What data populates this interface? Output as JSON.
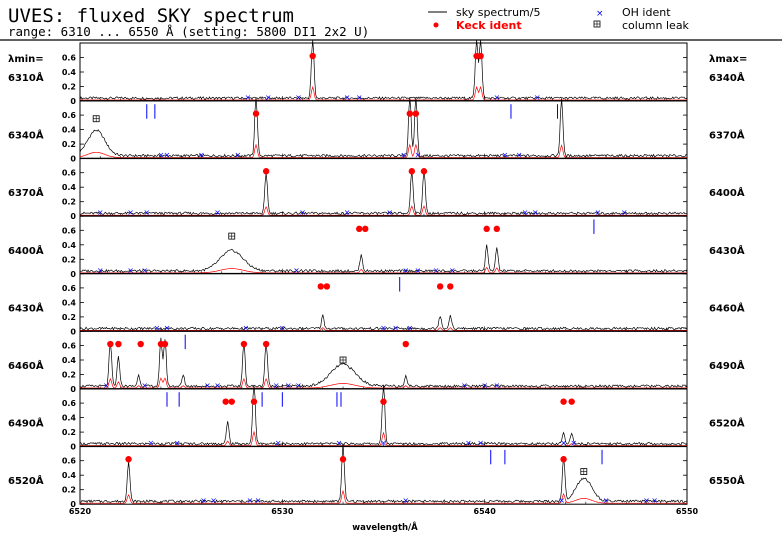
{
  "header": {
    "title": "UVES: fluxed SKY spectrum",
    "range_line": "range: 6310 ... 6550 Å (setting: 5800 DI1 2x2 U)"
  },
  "legend": {
    "sky": "sky spectrum/5",
    "keck": "Keck ident",
    "oh": "OH ident",
    "leak": "column leak"
  },
  "side_headers": {
    "left": "λmin=",
    "right": "λmax="
  },
  "colors": {
    "sky": "#000000",
    "keck": "#ff0000",
    "oh": "#0000ff",
    "frame": "#000000"
  },
  "chart_data": {
    "type": "line",
    "title": "UVES: fluxed SKY spectrum",
    "xlabel": "wavelength/Å",
    "ylabel": "",
    "x_ticks": [
      6520,
      6530,
      6540,
      6550
    ],
    "x_tick_labels": [
      "6520",
      "6530",
      "6540",
      "6550"
    ],
    "y_ticks": [
      0,
      0.2,
      0.4,
      0.6
    ],
    "y_tick_labels": [
      "0",
      "0.2",
      "0.4",
      "0.6"
    ],
    "ylim": [
      0,
      0.8
    ],
    "grid": false,
    "legend_position": "top-right",
    "series": [
      {
        "name": "sky spectrum/5",
        "color": "#000000"
      },
      {
        "name": "Keck ident",
        "color": "#ff0000"
      },
      {
        "name": "OH ident",
        "color": "#0000ff"
      },
      {
        "name": "column leak",
        "color": "#000000"
      }
    ],
    "panels": [
      {
        "lmin": "6310Å",
        "lmax": "6340Å",
        "xlim": [
          6310,
          6340
        ],
        "lines": [
          {
            "x": 6321.5,
            "h": 0.85
          },
          {
            "x": 6329.6,
            "h": 0.85
          },
          {
            "x": 6329.8,
            "h": 0.85
          }
        ],
        "keck": [
          {
            "x": 6321.5,
            "y": 0.62
          },
          {
            "x": 6329.6,
            "y": 0.62
          },
          {
            "x": 6329.8,
            "y": 0.62
          }
        ],
        "oh": [
          6318.3,
          6319.3,
          6320.8,
          6323.2,
          6323.8,
          6330.6,
          6332.6
        ],
        "ticks": [],
        "leak": [],
        "bumps": []
      },
      {
        "lmin": "6340Å",
        "lmax": "6370Å",
        "xlim": [
          6340,
          6370
        ],
        "lines": [
          {
            "x": 6348.7,
            "h": 0.85
          },
          {
            "x": 6356.3,
            "h": 0.85
          },
          {
            "x": 6356.6,
            "h": 0.85
          },
          {
            "x": 6363.8,
            "h": 0.8
          }
        ],
        "keck": [
          {
            "x": 6348.7,
            "y": 0.62
          },
          {
            "x": 6356.3,
            "y": 0.62
          },
          {
            "x": 6356.6,
            "y": 0.62
          }
        ],
        "oh": [
          6344.0,
          6344.3,
          6346.0,
          6347.8,
          6356.0,
          6356.7,
          6361.0,
          6361.7
        ],
        "ticks": [
          6343.3,
          6343.7,
          6361.3,
          6363.6
        ],
        "leak": [
          {
            "x": 6340.8,
            "y": 0.55
          }
        ],
        "bumps": [
          {
            "x": 6340.8,
            "w": 1.2,
            "h": 0.35
          }
        ]
      },
      {
        "lmin": "6370Å",
        "lmax": "6400Å",
        "xlim": [
          6370,
          6400
        ],
        "lines": [
          {
            "x": 6379.2,
            "h": 0.55
          },
          {
            "x": 6386.4,
            "h": 0.6
          },
          {
            "x": 6387.0,
            "h": 0.6
          }
        ],
        "keck": [
          {
            "x": 6379.2,
            "y": 0.62
          },
          {
            "x": 6386.4,
            "y": 0.62
          },
          {
            "x": 6387.0,
            "y": 0.62
          }
        ],
        "oh": [
          6371.0,
          6372.5,
          6373.3,
          6376.8,
          6381.0,
          6383.2,
          6385.3,
          6392.0,
          6392.5,
          6395.6,
          6396.9
        ],
        "ticks": [],
        "leak": [],
        "bumps": []
      },
      {
        "lmin": "6400Å",
        "lmax": "6430Å",
        "xlim": [
          6400,
          6430
        ],
        "lines": [
          {
            "x": 6413.9,
            "h": 0.22
          },
          {
            "x": 6420.1,
            "h": 0.35
          },
          {
            "x": 6420.6,
            "h": 0.32
          }
        ],
        "keck": [
          {
            "x": 6413.8,
            "y": 0.62
          },
          {
            "x": 6414.1,
            "y": 0.62
          },
          {
            "x": 6420.1,
            "y": 0.62
          },
          {
            "x": 6420.6,
            "y": 0.62
          }
        ],
        "oh": [
          6401.0,
          6402.5,
          6403.2,
          6410.7,
          6416.1,
          6416.7,
          6417.6,
          6418.4
        ],
        "ticks": [
          6425.4
        ],
        "leak": [
          {
            "x": 6407.5,
            "y": 0.52
          }
        ],
        "bumps": [
          {
            "x": 6407.5,
            "w": 1.6,
            "h": 0.28
          }
        ]
      },
      {
        "lmin": "6430Å",
        "lmax": "6460Å",
        "xlim": [
          6430,
          6460
        ],
        "lines": [
          {
            "x": 6442.0,
            "h": 0.18
          },
          {
            "x": 6447.8,
            "h": 0.18
          },
          {
            "x": 6448.3,
            "h": 0.18
          }
        ],
        "keck": [
          {
            "x": 6441.9,
            "y": 0.62
          },
          {
            "x": 6442.2,
            "y": 0.62
          },
          {
            "x": 6447.8,
            "y": 0.62
          },
          {
            "x": 6448.3,
            "y": 0.62
          }
        ],
        "oh": [
          6433.8,
          6434.3,
          6438.2,
          6440.0,
          6445.0,
          6445.6,
          6446.3
        ],
        "ticks": [
          6445.8
        ],
        "leak": [],
        "bumps": []
      },
      {
        "lmin": "6460Å",
        "lmax": "6490Å",
        "xlim": [
          6460,
          6490
        ],
        "lines": [
          {
            "x": 6461.5,
            "h": 0.6
          },
          {
            "x": 6461.9,
            "h": 0.4
          },
          {
            "x": 6462.9,
            "h": 0.15
          },
          {
            "x": 6464.0,
            "h": 0.65
          },
          {
            "x": 6464.2,
            "h": 0.65
          },
          {
            "x": 6465.1,
            "h": 0.15
          },
          {
            "x": 6468.1,
            "h": 0.6
          },
          {
            "x": 6469.2,
            "h": 0.6
          },
          {
            "x": 6476.1,
            "h": 0.15
          }
        ],
        "keck": [
          {
            "x": 6461.5,
            "y": 0.62
          },
          {
            "x": 6461.9,
            "y": 0.62
          },
          {
            "x": 6463.0,
            "y": 0.62
          },
          {
            "x": 6464.0,
            "y": 0.62
          },
          {
            "x": 6464.2,
            "y": 0.62
          },
          {
            "x": 6468.1,
            "y": 0.62
          },
          {
            "x": 6469.2,
            "y": 0.62
          },
          {
            "x": 6476.1,
            "y": 0.62
          }
        ],
        "oh": [
          6461.3,
          6463.2,
          6466.3,
          6466.8,
          6469.7,
          6470.3,
          6470.8,
          6479.0,
          6480.0,
          6480.6
        ],
        "ticks": [
          6465.2
        ],
        "leak": [
          {
            "x": 6473.0,
            "y": 0.4
          }
        ],
        "bumps": [
          {
            "x": 6473.0,
            "w": 1.7,
            "h": 0.3
          }
        ]
      },
      {
        "lmin": "6490Å",
        "lmax": "6520Å",
        "xlim": [
          6490,
          6520
        ],
        "lines": [
          {
            "x": 6497.3,
            "h": 0.3
          },
          {
            "x": 6498.6,
            "h": 0.9
          },
          {
            "x": 6505.0,
            "h": 0.85
          },
          {
            "x": 6513.9,
            "h": 0.15
          },
          {
            "x": 6514.3,
            "h": 0.13
          }
        ],
        "keck": [
          {
            "x": 6497.2,
            "y": 0.62
          },
          {
            "x": 6497.5,
            "y": 0.62
          },
          {
            "x": 6498.6,
            "y": 0.62
          },
          {
            "x": 6505.0,
            "y": 0.62
          },
          {
            "x": 6513.9,
            "y": 0.62
          },
          {
            "x": 6514.3,
            "y": 0.62
          }
        ],
        "oh": [
          6493.5,
          6494.8,
          6499.8,
          6502.8,
          6505.0,
          6509.2,
          6509.8,
          6513.9,
          6514.4
        ],
        "ticks": [
          6494.3,
          6494.9,
          6499.0,
          6500.0,
          6502.7,
          6502.9
        ],
        "leak": [],
        "bumps": []
      },
      {
        "lmin": "6520Å",
        "lmax": "6550Å",
        "xlim": [
          6520,
          6550
        ],
        "lines": [
          {
            "x": 6522.4,
            "h": 0.55
          },
          {
            "x": 6533.0,
            "h": 0.8
          },
          {
            "x": 6543.9,
            "h": 0.6
          }
        ],
        "keck": [
          {
            "x": 6522.4,
            "y": 0.62
          },
          {
            "x": 6533.0,
            "y": 0.62
          },
          {
            "x": 6543.9,
            "y": 0.62
          }
        ],
        "oh": [
          6526.1,
          6526.6,
          6528.4,
          6528.8,
          6536.1,
          6543.8,
          6546.0,
          6548.0,
          6548.4
        ],
        "ticks": [
          6540.3,
          6541.0,
          6545.8
        ],
        "leak": [
          {
            "x": 6544.9,
            "y": 0.45
          }
        ],
        "bumps": [
          {
            "x": 6544.9,
            "w": 1.1,
            "h": 0.32
          }
        ]
      }
    ]
  }
}
